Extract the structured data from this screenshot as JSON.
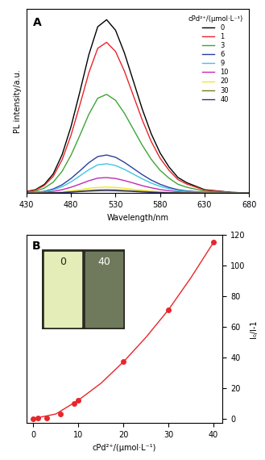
{
  "chart_data": [
    {
      "type": "line",
      "panel": "A",
      "x_label": "Wavelength/nm",
      "y_label": "PL intensity/a.u.",
      "legend_title": "cPd²⁺/(μmol·L⁻¹)",
      "legend": "upper right",
      "tick_labels": "x",
      "xlim": [
        430,
        680
      ],
      "xticks": [
        430,
        480,
        530,
        580,
        630,
        680
      ],
      "ylim": [
        0,
        1.05
      ],
      "yticks": [],
      "x": [
        430,
        440,
        450,
        460,
        470,
        480,
        490,
        500,
        510,
        520,
        530,
        540,
        550,
        560,
        570,
        580,
        590,
        600,
        610,
        620,
        630,
        640,
        650,
        660,
        670,
        680
      ],
      "series": [
        {
          "name": "0",
          "color": "#000000",
          "values": [
            0.01,
            0.02,
            0.05,
            0.11,
            0.22,
            0.38,
            0.58,
            0.79,
            0.95,
            0.99,
            0.93,
            0.8,
            0.64,
            0.48,
            0.34,
            0.23,
            0.15,
            0.09,
            0.06,
            0.04,
            0.02,
            0.015,
            0.01,
            0.005,
            0.003,
            0.002
          ]
        },
        {
          "name": "1",
          "color": "#e8262b",
          "values": [
            0.009,
            0.017,
            0.044,
            0.096,
            0.191,
            0.331,
            0.505,
            0.687,
            0.827,
            0.861,
            0.809,
            0.696,
            0.557,
            0.418,
            0.296,
            0.2,
            0.131,
            0.078,
            0.052,
            0.035,
            0.017,
            0.013,
            0.009,
            0.004,
            0.003,
            0.002
          ]
        },
        {
          "name": "3",
          "color": "#3fa535",
          "values": [
            0.006,
            0.011,
            0.029,
            0.063,
            0.125,
            0.217,
            0.331,
            0.45,
            0.542,
            0.564,
            0.53,
            0.456,
            0.365,
            0.274,
            0.194,
            0.131,
            0.086,
            0.051,
            0.034,
            0.023,
            0.011,
            0.009,
            0.006,
            0.003,
            0.002,
            0.001
          ]
        },
        {
          "name": "6",
          "color": "#2b3f9e",
          "values": [
            0.002,
            0.004,
            0.011,
            0.024,
            0.048,
            0.084,
            0.128,
            0.174,
            0.209,
            0.218,
            0.205,
            0.176,
            0.141,
            0.106,
            0.075,
            0.051,
            0.033,
            0.02,
            0.013,
            0.009,
            0.004,
            0.003,
            0.002,
            0.001,
            0.001,
            0.0
          ]
        },
        {
          "name": "9",
          "color": "#3fc6e0",
          "values": [
            0.002,
            0.003,
            0.009,
            0.019,
            0.037,
            0.065,
            0.099,
            0.134,
            0.162,
            0.168,
            0.158,
            0.136,
            0.109,
            0.082,
            0.058,
            0.039,
            0.026,
            0.015,
            0.01,
            0.007,
            0.003,
            0.003,
            0.002,
            0.001,
            0.001,
            0.0
          ]
        },
        {
          "name": "10",
          "color": "#c22ab3",
          "values": [
            0.001,
            0.002,
            0.005,
            0.01,
            0.02,
            0.034,
            0.052,
            0.071,
            0.086,
            0.089,
            0.084,
            0.072,
            0.058,
            0.043,
            0.031,
            0.021,
            0.014,
            0.008,
            0.005,
            0.004,
            0.002,
            0.001,
            0.001,
            0.0,
            0.0,
            0.0
          ]
        },
        {
          "name": "20",
          "color": "#f2e62c",
          "values": [
            0.0,
            0.001,
            0.002,
            0.004,
            0.008,
            0.013,
            0.02,
            0.028,
            0.033,
            0.035,
            0.033,
            0.028,
            0.022,
            0.017,
            0.012,
            0.008,
            0.005,
            0.003,
            0.002,
            0.001,
            0.001,
            0.001,
            0.0,
            0.0,
            0.0,
            0.0
          ]
        },
        {
          "name": "30",
          "color": "#7a7a1e",
          "values": [
            0.0,
            0.0,
            0.001,
            0.002,
            0.004,
            0.008,
            0.012,
            0.016,
            0.019,
            0.02,
            0.019,
            0.016,
            0.013,
            0.01,
            0.007,
            0.005,
            0.003,
            0.002,
            0.001,
            0.001,
            0.0,
            0.0,
            0.0,
            0.0,
            0.0,
            0.0
          ]
        },
        {
          "name": "40",
          "color": "#33337a",
          "values": [
            0.0,
            0.0,
            0.001,
            0.002,
            0.003,
            0.006,
            0.009,
            0.012,
            0.014,
            0.015,
            0.014,
            0.012,
            0.01,
            0.007,
            0.005,
            0.003,
            0.002,
            0.001,
            0.001,
            0.001,
            0.0,
            0.0,
            0.0,
            0.0,
            0.0,
            0.0
          ]
        }
      ]
    },
    {
      "type": "scatter",
      "panel": "B",
      "x_label": "cPd²⁺/(μmol·L⁻¹)",
      "y_label": "I₀/I-1",
      "xlim": [
        -1.5,
        42
      ],
      "xticks": [
        0,
        10,
        20,
        30,
        40
      ],
      "ylim": [
        -3,
        120
      ],
      "yticks": [
        0,
        20,
        40,
        60,
        80,
        100,
        120
      ],
      "inset_labels": [
        "0",
        "40"
      ],
      "series": [
        {
          "type": "scatter",
          "color": "#e8262b",
          "marker": "o",
          "x": [
            0,
            1,
            3,
            6,
            9,
            10,
            20,
            30,
            40
          ],
          "values": [
            0,
            0.2,
            0.6,
            3,
            10,
            12,
            37,
            71,
            115
          ]
        },
        {
          "type": "line",
          "color": "#e8262b",
          "line_style": "solid",
          "x": [
            0,
            5,
            10,
            15,
            20,
            25,
            30,
            35,
            40
          ],
          "values": [
            0,
            3,
            12,
            23,
            37,
            53,
            71,
            92,
            115
          ]
        }
      ]
    }
  ]
}
